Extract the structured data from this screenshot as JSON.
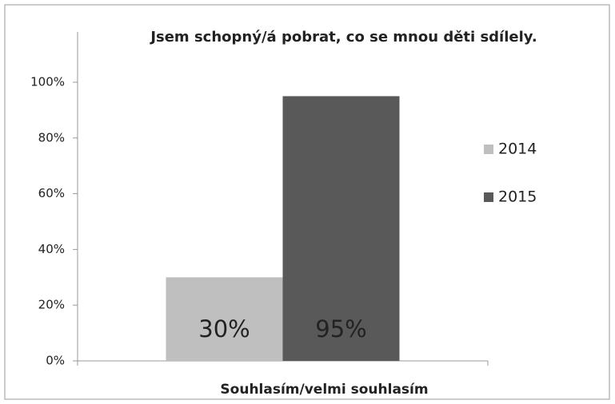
{
  "chart_data": {
    "type": "bar",
    "title": "Jsem schopný/á pobrat, co se mnou děti sdílely.",
    "categories": [
      "Souhlasím/velmi souhlasím"
    ],
    "series": [
      {
        "name": "2014",
        "color": "#bfbfbf",
        "values": [
          30
        ],
        "value_labels": [
          "30%"
        ]
      },
      {
        "name": "2015",
        "color": "#595959",
        "values": [
          95
        ],
        "value_labels": [
          "95%"
        ]
      }
    ],
    "ylim": [
      0,
      100
    ],
    "yticks": [
      {
        "value": 0,
        "label": "0%"
      },
      {
        "value": 20,
        "label": "20%"
      },
      {
        "value": 40,
        "label": "40%"
      },
      {
        "value": 60,
        "label": "60%"
      },
      {
        "value": 80,
        "label": "80%"
      },
      {
        "value": 100,
        "label": "100%"
      }
    ],
    "grid": false,
    "legend": "right"
  }
}
